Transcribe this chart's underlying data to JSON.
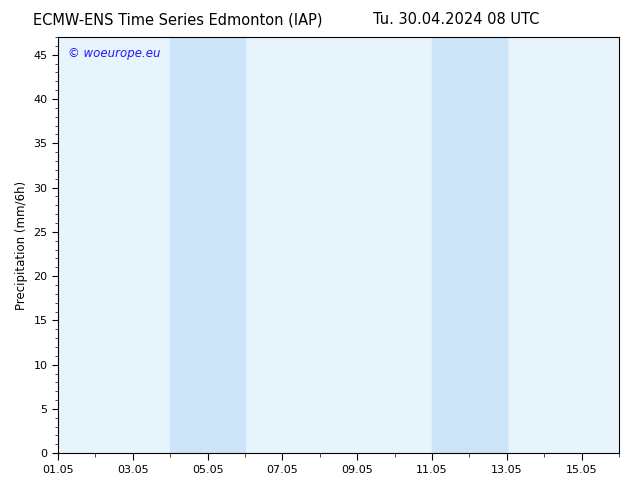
{
  "title_left": "ECMW-ENS Time Series Edmonton (IAP)",
  "title_right": "Tu. 30.04.2024 08 UTC",
  "ylabel": "Precipitation (mm/6h)",
  "ylim": [
    0,
    47
  ],
  "yticks": [
    0,
    5,
    10,
    15,
    20,
    25,
    30,
    35,
    40,
    45
  ],
  "xtick_labels": [
    "01.05",
    "03.05",
    "05.05",
    "07.05",
    "09.05",
    "11.05",
    "13.05",
    "15.05"
  ],
  "xtick_positions_days": [
    1,
    3,
    5,
    7,
    9,
    11,
    13,
    15
  ],
  "shade_bands": [
    {
      "x_start_day": 4.0,
      "x_end_day": 6.0
    },
    {
      "x_start_day": 11.0,
      "x_end_day": 13.0
    }
  ],
  "shade_color": "#cce4f7",
  "plot_bg_color": "#e8f4fc",
  "background_color": "#ffffff",
  "watermark_text": "© woeurope.eu",
  "watermark_color": "#1a1aff",
  "title_fontsize": 10.5,
  "axis_label_fontsize": 8.5,
  "tick_fontsize": 8
}
